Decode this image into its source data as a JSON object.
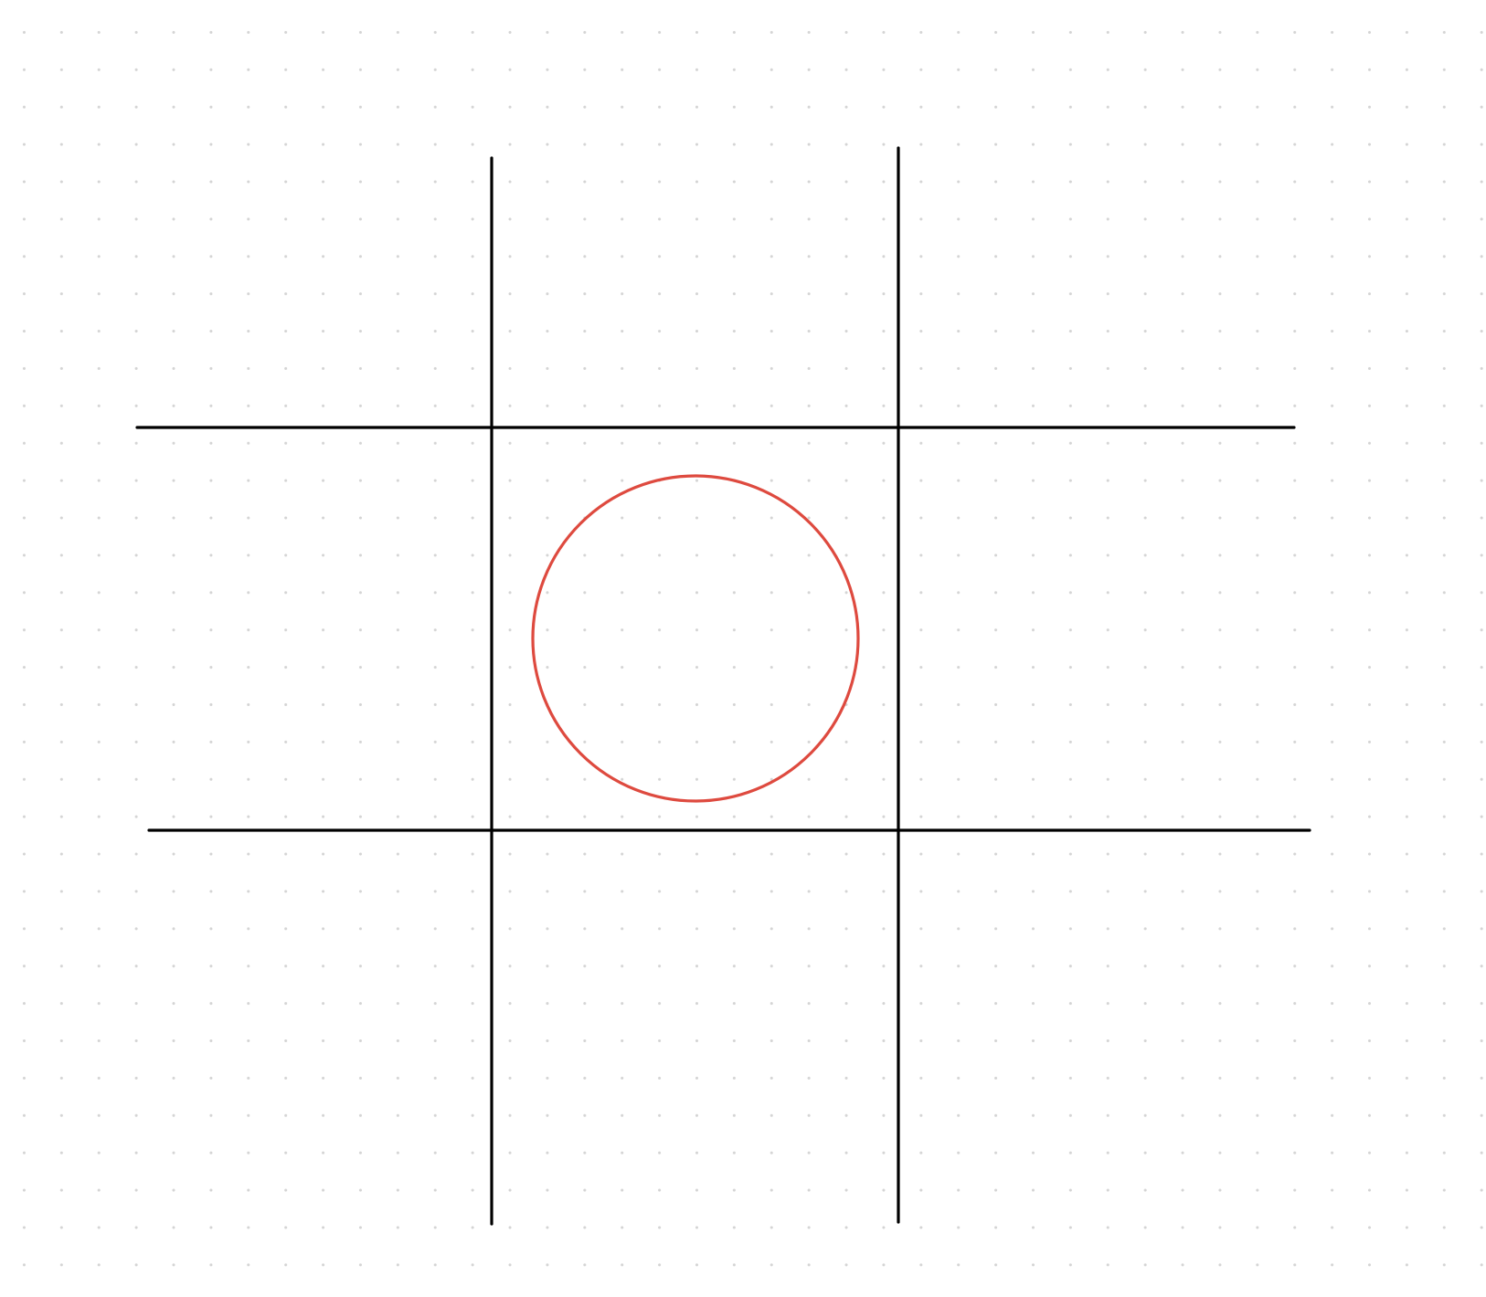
{
  "game": {
    "type": "tic-tac-toe",
    "board": [
      [
        "",
        "",
        ""
      ],
      [
        "",
        "O",
        ""
      ],
      [
        "",
        "",
        ""
      ]
    ]
  },
  "colors": {
    "grid_line": "#000000",
    "o_mark": "#de4a3f",
    "background": "#ffffff",
    "dot_grid": "#d4d4d4"
  }
}
